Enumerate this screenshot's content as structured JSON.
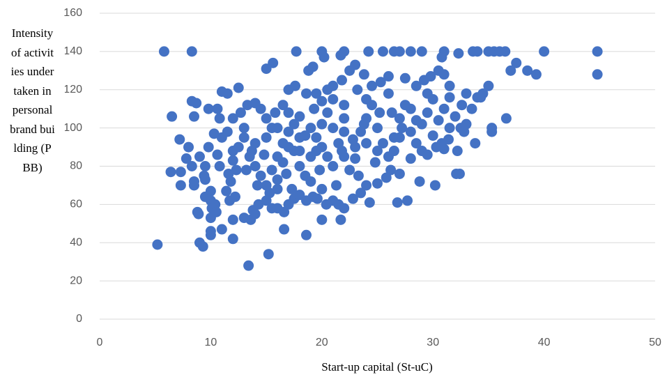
{
  "chart_data": {
    "type": "scatter",
    "x_label": "Start-up capital (St-uC)",
    "y_label": "Intensity of activities undertaken in personal brand building (PBB)",
    "color": "#4472c4",
    "grid": true,
    "xlim": [
      0,
      50
    ],
    "xticks": [
      0,
      10,
      20,
      30,
      40,
      50
    ],
    "ylim": [
      0,
      160
    ],
    "yticks": [
      0,
      20,
      40,
      60,
      80,
      100,
      120,
      140,
      160
    ],
    "x": [
      5.2,
      5.8,
      8.3,
      6.4,
      6.5,
      8.3,
      8.7,
      8.5,
      8.8,
      8.9,
      9,
      9.3,
      10,
      10,
      11,
      12,
      13.4,
      15.2,
      16.6,
      18.6,
      20,
      21.7,
      24.3,
      26.8,
      27.7,
      28.8,
      30.2,
      32.1,
      32.4,
      33.8,
      35.3,
      35.3,
      36.6,
      37,
      37.5,
      38.5,
      39.3,
      40,
      44.8,
      44.8,
      35,
      35.5,
      36,
      36.5,
      34,
      33.6,
      31,
      32.3,
      30.8,
      29,
      28,
      27,
      26.5,
      25.5,
      24.2,
      22,
      21.7,
      20,
      20.2,
      17.7,
      19.2,
      18.8,
      15.6,
      15,
      12.5,
      11,
      11.5,
      10.8,
      9.8,
      10.6,
      7.2,
      7.3,
      7.3,
      7.8,
      8,
      8.3,
      8.5,
      8.5,
      9.5,
      9.4,
      9.5,
      10,
      10,
      10.4,
      10.1,
      10.5,
      10,
      11.4,
      11.7,
      12.2,
      12,
      13,
      13.6,
      14,
      13.8,
      14.3,
      15,
      15.5,
      16,
      16.6,
      17,
      17.5,
      18,
      18.6,
      19.2,
      19.6,
      20.4,
      21,
      21.5,
      22,
      22.8,
      23.5,
      24,
      25,
      25.8,
      26.2,
      27,
      28,
      29,
      29.5,
      30.3,
      31,
      31.4,
      32.2,
      32.5,
      33,
      33.5,
      34,
      34.5,
      35,
      34.3,
      33,
      32.6,
      31.5,
      31,
      30.5,
      29.8,
      29.2,
      28.5,
      27.5,
      26,
      25.3,
      24.5,
      23.8,
      23,
      22.5,
      21.8,
      21,
      20.5,
      19.5,
      18.6,
      17.6,
      17,
      16.5,
      15.8,
      15,
      14.5,
      14,
      13.3,
      12.7,
      12,
      11.5,
      11,
      10.3,
      9.8,
      9,
      10.8,
      11.6,
      12,
      12.5,
      13,
      13.5,
      14,
      14.5,
      15,
      15.5,
      16,
      16.5,
      17,
      17.5,
      18,
      18.5,
      19,
      19.5,
      20,
      20.5,
      21,
      21.5,
      22,
      22.5,
      23,
      23.5,
      24,
      24.5,
      25,
      25.5,
      26,
      26.5,
      27,
      27.5,
      28,
      28.5,
      29,
      29.5,
      30,
      30.5,
      31,
      31.5,
      32,
      30,
      28,
      26,
      24,
      22,
      20,
      18,
      16,
      14,
      12,
      13,
      15,
      17,
      19,
      21,
      23,
      25,
      27,
      16,
      18,
      20,
      22,
      24,
      14.2,
      15.3,
      17.3,
      19.8,
      21.3,
      23.3,
      22,
      19,
      17,
      15.5,
      13.7,
      12.3,
      11.8,
      10.6,
      9.5,
      20.5,
      18,
      16.5,
      24.8,
      26.5,
      28.5,
      27.2,
      25.2,
      23.2,
      21,
      19.3,
      17.5,
      14.8,
      13.2,
      16,
      20,
      23.8,
      29.5,
      31.5,
      32.8,
      30.8,
      26.3,
      19.5,
      18.5,
      16.8,
      22.8,
      21.8
    ],
    "values": [
      39,
      140,
      140,
      77,
      106,
      114,
      113,
      106,
      56,
      55,
      40,
      38,
      44,
      46,
      47,
      42,
      28,
      34,
      47,
      44,
      52,
      52,
      61,
      61,
      62,
      72,
      70,
      76,
      76,
      92,
      100,
      98,
      105,
      130,
      134,
      130,
      128,
      140,
      140,
      128,
      140,
      140,
      140,
      140,
      140,
      140,
      140,
      139,
      137,
      140,
      140,
      140,
      140,
      140,
      140,
      140,
      138,
      140,
      137,
      140,
      132,
      130,
      134,
      131,
      121,
      119,
      118,
      105,
      110,
      110,
      94,
      77,
      70,
      84,
      90,
      80,
      72,
      70,
      80,
      75,
      64,
      67,
      62,
      60,
      58,
      56,
      53,
      67,
      62,
      64,
      52,
      53,
      52,
      55,
      57,
      60,
      62,
      58,
      58,
      56,
      60,
      63,
      65,
      62,
      64,
      63,
      60,
      62,
      60,
      58,
      63,
      66,
      70,
      71,
      74,
      78,
      76,
      84,
      88,
      86,
      90,
      89,
      94,
      88,
      100,
      102,
      110,
      116,
      118,
      122,
      116,
      118,
      112,
      122,
      128,
      130,
      127,
      125,
      122,
      126,
      127,
      124,
      122,
      128,
      133,
      130,
      125,
      122,
      120,
      118,
      118,
      122,
      120,
      112,
      108,
      105,
      110,
      113,
      112,
      108,
      105,
      98,
      95,
      97,
      90,
      85,
      80,
      76,
      83,
      90,
      95,
      85,
      80,
      75,
      70,
      78,
      85,
      92,
      98,
      88,
      80,
      75,
      85,
      95,
      102,
      108,
      100,
      92,
      85,
      78,
      90,
      98,
      105,
      112,
      100,
      92,
      85,
      95,
      105,
      112,
      98,
      92,
      102,
      108,
      96,
      104,
      110,
      100,
      106,
      115,
      110,
      118,
      115,
      112,
      114,
      106,
      100,
      92,
      88,
      100,
      95,
      90,
      72,
      80,
      84,
      88,
      95,
      73,
      95,
      90,
      98,
      92,
      70,
      66,
      68,
      78,
      70,
      75,
      105,
      100,
      108,
      100,
      88,
      78,
      72,
      86,
      73,
      85,
      88,
      82,
      82,
      88,
      104,
      100,
      108,
      120,
      115,
      110,
      102,
      86,
      78,
      68,
      68,
      102,
      118,
      116,
      98,
      92,
      108,
      88,
      96,
      76,
      94,
      88
    ]
  }
}
